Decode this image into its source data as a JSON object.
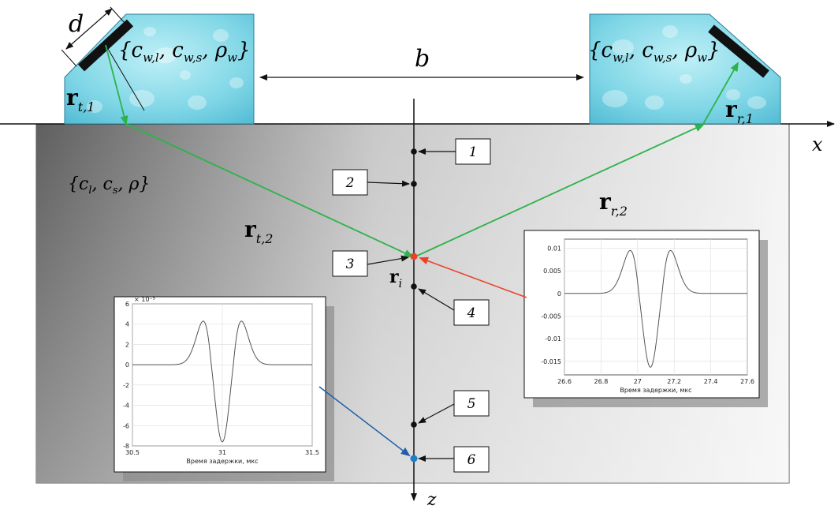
{
  "labels": {
    "d": "d",
    "b": "b",
    "x": "x",
    "z": "z",
    "ri_main": "r",
    "ri_sub": "i",
    "rt1_main": "r",
    "rt1_sub": "t,1",
    "rt2_main": "r",
    "rt2_sub": "t,2",
    "rr1_main": "r",
    "rr1_sub": "r,1",
    "rr2_main": "r",
    "rr2_sub": "r,2"
  },
  "media": {
    "left_wedge_params": "{c",
    "left_wedge_p1": "w,l",
    "left_wedge_p2": ", c",
    "left_wedge_p3": "w,s",
    "left_wedge_p4": ", ρ",
    "left_wedge_p5": "w",
    "left_wedge_p6": "}",
    "solid_a": "{c",
    "solid_b": "l",
    "solid_c": ", c",
    "solid_d": "s",
    "solid_e": ", ρ}"
  },
  "point_boxes": [
    "1",
    "2",
    "3",
    "4",
    "5",
    "6"
  ],
  "colors": {
    "green_ray": "#2db34a",
    "red_arrow": "#e8432a",
    "blue_arrow": "#1f5fa8",
    "red_point": "#e8432a",
    "blue_point": "#1a7fd0",
    "transducer": "#111111"
  },
  "chart_data": [
    {
      "type": "line",
      "name": "left-signal",
      "xlabel": "Время задержки, мкс",
      "ylabel": "",
      "exponent_label": "× 10⁻³",
      "xlim": [
        30.5,
        31.5
      ],
      "ylim": [
        -8,
        6
      ],
      "x_ticks": [
        "30.5",
        "31",
        "31.5"
      ],
      "y_ticks": [
        "6",
        "4",
        "2",
        "0",
        "-2",
        "-4",
        "-6",
        "-8"
      ],
      "waveform": {
        "center": 31.0,
        "amplitude_min": -7.6,
        "amplitude_max": 4.3,
        "side_lobe_offset": 0.14
      }
    },
    {
      "type": "line",
      "name": "right-signal",
      "xlabel": "Время задержки, мкс",
      "ylabel": "",
      "xlim": [
        26.6,
        27.6
      ],
      "ylim": [
        -0.018,
        0.012
      ],
      "x_ticks": [
        "26.6",
        "26.8",
        "27",
        "27.2",
        "27.4",
        "27.6"
      ],
      "y_ticks": [
        "0.01",
        "0.005",
        "0",
        "-0.005",
        "-0.01",
        "-0.015"
      ],
      "waveform": {
        "center": 27.07,
        "amplitude_min": -0.0163,
        "amplitude_max": 0.0095,
        "side_lobe_offset": 0.145
      }
    }
  ]
}
